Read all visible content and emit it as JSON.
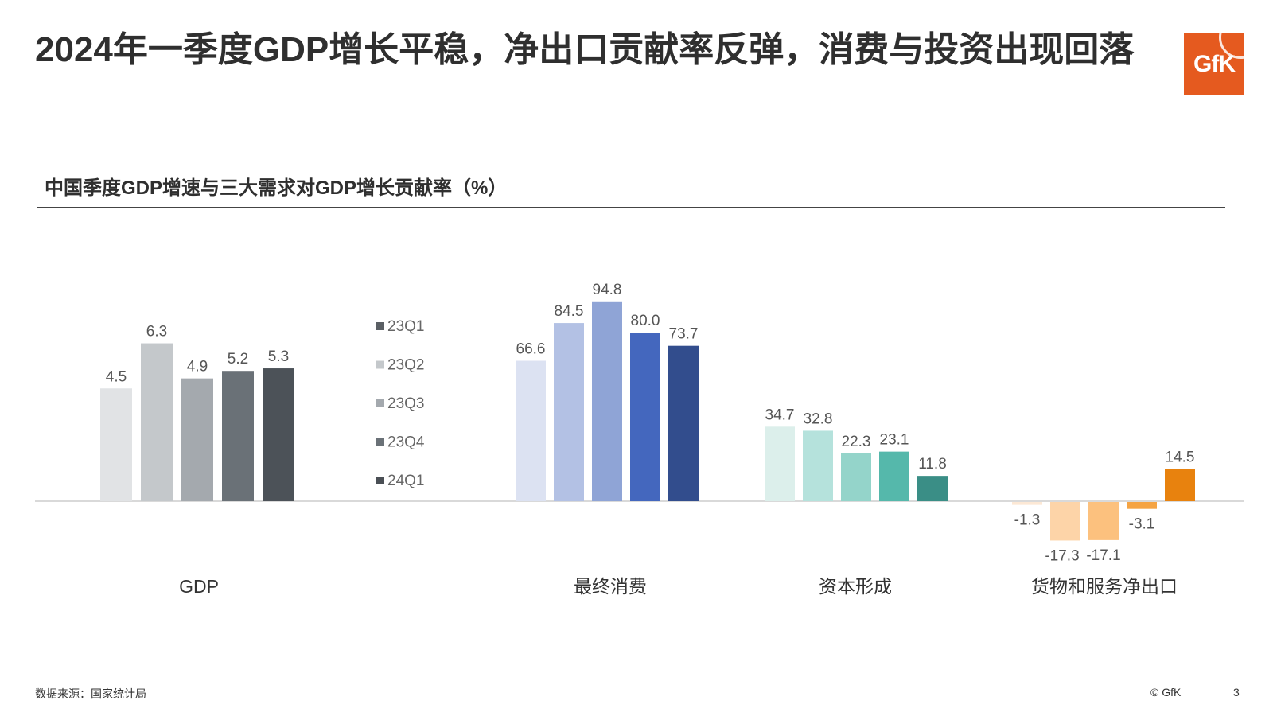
{
  "header": {
    "title": "2024年一季度GDP增长平稳，净出口贡献率反弹，消费与投资出现回落",
    "logo_text": "GfK"
  },
  "chart_data": {
    "type": "bar",
    "title": "中国季度GDP增速与三大需求对GDP增长贡献率（%）",
    "legend_position": "middle",
    "series_names": [
      "23Q1",
      "23Q2",
      "23Q3",
      "23Q4",
      "24Q1"
    ],
    "legend_colors": [
      "#5a5f64",
      "#c4c8cb",
      "#a4a9ae",
      "#6a7177",
      "#4a4f55"
    ],
    "groups": [
      {
        "category": "GDP",
        "values": [
          4.5,
          6.3,
          4.9,
          5.2,
          5.3
        ],
        "colors": [
          "#e1e3e5",
          "#c4c8cb",
          "#a4a9ae",
          "#6a7177",
          "#4c5258"
        ]
      },
      {
        "category": "最终消费",
        "values": [
          66.6,
          84.5,
          94.8,
          80.0,
          73.7
        ],
        "labels": [
          "66.6",
          "84.5",
          "94.8",
          "80.0",
          "73.7"
        ],
        "colors": [
          "#dce2f2",
          "#b3c1e4",
          "#8fa4d6",
          "#4467be",
          "#324d8d"
        ]
      },
      {
        "category": "资本形成",
        "values": [
          34.7,
          32.8,
          22.3,
          23.1,
          11.8
        ],
        "colors": [
          "#dcefeb",
          "#b5e2dc",
          "#94d4ca",
          "#55b8ab",
          "#3a8e86"
        ]
      },
      {
        "category": "货物和服务净出口",
        "values": [
          -1.3,
          -17.3,
          -17.1,
          -3.1,
          14.5
        ],
        "colors": [
          "#fce8d5",
          "#fdd4a8",
          "#fcc17e",
          "#f5a443",
          "#e8820e"
        ]
      }
    ]
  },
  "footer": {
    "source": "数据来源：国家统计局",
    "copyright": "© GfK",
    "page_number": "3"
  }
}
